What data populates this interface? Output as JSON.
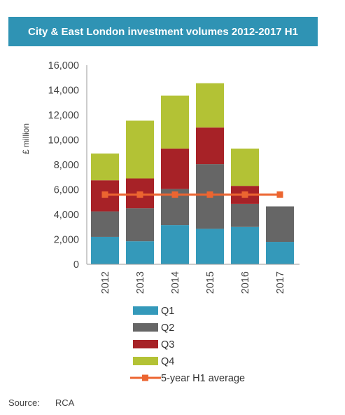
{
  "title": "City & East London investment volumes 2012-2017 H1",
  "source": {
    "label": "Source:",
    "value": "RCA"
  },
  "colors": {
    "title_bg": "#2f93b4",
    "Q1": "#3499ba",
    "Q2": "#666666",
    "Q3": "#a72227",
    "Q4": "#b3c235",
    "average": "#ec6530"
  },
  "chart_data": {
    "type": "bar",
    "stacked": true,
    "title": "City & East London investment volumes 2012-2017 H1",
    "ylabel": "£ million",
    "xlabel": "",
    "ylim": [
      0,
      16000
    ],
    "y_ticks": [
      "0",
      "2,000",
      "4,000",
      "6,000",
      "8,000",
      "10,000",
      "12,000",
      "14,000",
      "16,000"
    ],
    "categories": [
      "2012",
      "2013",
      "2014",
      "2015",
      "2016",
      "2017"
    ],
    "series": [
      {
        "name": "Q1",
        "type": "bar",
        "color": "#3499ba",
        "values": [
          2200,
          1850,
          3150,
          2850,
          3000,
          1800
        ]
      },
      {
        "name": "Q2",
        "type": "bar",
        "color": "#666666",
        "values": [
          2050,
          2650,
          2900,
          5200,
          1850,
          2850
        ]
      },
      {
        "name": "Q3",
        "type": "bar",
        "color": "#a72227",
        "values": [
          2500,
          2400,
          3250,
          2950,
          1450,
          0
        ]
      },
      {
        "name": "Q4",
        "type": "bar",
        "color": "#b3c235",
        "values": [
          2150,
          4650,
          4250,
          3550,
          3000,
          0
        ]
      },
      {
        "name": "5-year H1 average",
        "type": "line",
        "color": "#ec6530",
        "values": [
          5600,
          5600,
          5600,
          5600,
          5600,
          5600
        ]
      }
    ],
    "legend_position": "bottom",
    "grid": false
  }
}
